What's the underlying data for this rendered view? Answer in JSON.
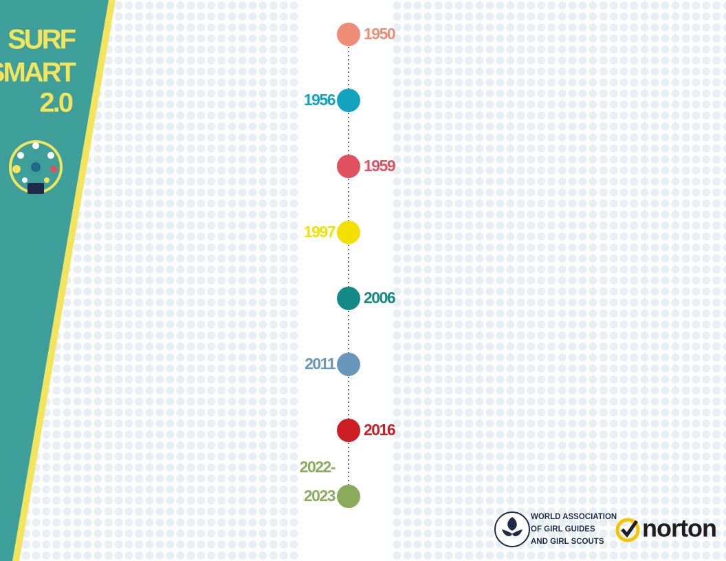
{
  "brand": {
    "lines": [
      "SURF",
      "SMART",
      "2.0"
    ]
  },
  "timeline": {
    "events": [
      {
        "lines": [
          "1950"
        ],
        "side": "right",
        "color": "#ef8c76"
      },
      {
        "lines": [
          "1956"
        ],
        "side": "left",
        "color": "#12a3be"
      },
      {
        "lines": [
          "1959"
        ],
        "side": "right",
        "color": "#e0505f"
      },
      {
        "lines": [
          "1997"
        ],
        "side": "left",
        "color": "#f3e000"
      },
      {
        "lines": [
          "2006"
        ],
        "side": "right",
        "color": "#138a85"
      },
      {
        "lines": [
          "2011"
        ],
        "side": "left",
        "color": "#6797bd"
      },
      {
        "lines": [
          "2016"
        ],
        "side": "right",
        "color": "#cc1c24"
      },
      {
        "lines": [
          "2022-",
          "2023"
        ],
        "side": "left",
        "color": "#8aab5c"
      }
    ]
  },
  "logos": {
    "wagggs": {
      "lines": [
        "WORLD ASSOCIATION",
        "OF GIRL GUIDES",
        "AND GIRL SCOUTS"
      ]
    },
    "norton": {
      "name": "norton"
    }
  }
}
